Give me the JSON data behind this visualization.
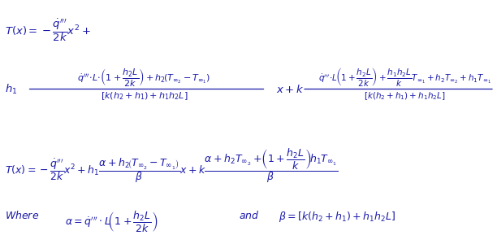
{
  "background_color": "#ffffff",
  "text_color": "#1a1aaa",
  "figsize": [
    6.12,
    3.0
  ],
  "dpi": 100,
  "fs": 9.5,
  "fs_small": 8.0,
  "fs_line3": 9.0,
  "fs_line4": 9.0,
  "color": "#1a1aaa"
}
